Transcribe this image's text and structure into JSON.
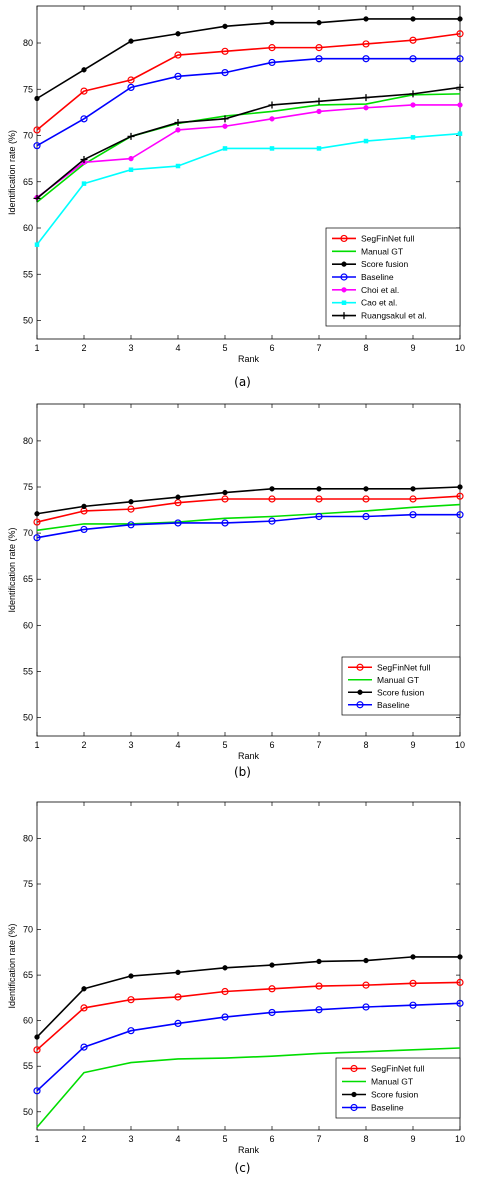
{
  "chart_data": [
    {
      "type": "line",
      "caption": "(a)",
      "xlabel": "Rank",
      "ylabel": "Identification rate (%)",
      "xlim": [
        1,
        10
      ],
      "ylim": [
        48,
        84
      ],
      "xticks": [
        1,
        2,
        3,
        4,
        5,
        6,
        7,
        8,
        9,
        10
      ],
      "yticks": [
        50,
        55,
        60,
        65,
        70,
        75,
        80
      ],
      "grid": false,
      "legend_position": "lower-right",
      "x": [
        1,
        2,
        3,
        4,
        5,
        6,
        7,
        8,
        9,
        10
      ],
      "series": [
        {
          "name": "SegFinNet full",
          "color": "#ff0000",
          "marker": "circle",
          "values": [
            70.6,
            74.8,
            76.0,
            78.7,
            79.1,
            79.5,
            79.5,
            79.9,
            80.3,
            81.0
          ]
        },
        {
          "name": "Manual GT",
          "color": "#00dd00",
          "marker": "none",
          "values": [
            62.8,
            66.9,
            69.9,
            71.3,
            72.1,
            72.6,
            73.3,
            73.4,
            74.4,
            74.5
          ]
        },
        {
          "name": "Score fusion",
          "color": "#000000",
          "marker": "dot",
          "values": [
            74.0,
            77.1,
            80.2,
            81.0,
            81.8,
            82.2,
            82.2,
            82.6,
            82.6,
            82.6
          ]
        },
        {
          "name": "Baseline",
          "color": "#0000ff",
          "marker": "circle",
          "values": [
            68.9,
            71.8,
            75.2,
            76.4,
            76.8,
            77.9,
            78.3,
            78.3,
            78.3,
            78.3
          ]
        },
        {
          "name": "Choi et al.",
          "color": "#ff00ff",
          "marker": "dot",
          "values": [
            63.3,
            67.1,
            67.5,
            70.6,
            71.0,
            71.8,
            72.6,
            73.0,
            73.3,
            73.3
          ]
        },
        {
          "name": "Cao et al.",
          "color": "#00ffff",
          "marker": "square",
          "values": [
            58.2,
            64.8,
            66.3,
            66.7,
            68.6,
            68.6,
            68.6,
            69.4,
            69.8,
            70.2
          ]
        },
        {
          "name": "Ruangsakul et al.",
          "color": "#000000",
          "marker": "plus",
          "values": [
            63.2,
            67.4,
            69.9,
            71.4,
            71.8,
            73.3,
            73.7,
            74.1,
            74.5,
            75.2
          ]
        }
      ]
    },
    {
      "type": "line",
      "caption": "(b)",
      "xlabel": "Rank",
      "ylabel": "Identification rate (%)",
      "xlim": [
        1,
        10
      ],
      "ylim": [
        48,
        84
      ],
      "xticks": [
        1,
        2,
        3,
        4,
        5,
        6,
        7,
        8,
        9,
        10
      ],
      "yticks": [
        50,
        55,
        60,
        65,
        70,
        75,
        80
      ],
      "grid": false,
      "legend_position": "lower-right",
      "x": [
        1,
        2,
        3,
        4,
        5,
        6,
        7,
        8,
        9,
        10
      ],
      "series": [
        {
          "name": "SegFinNet full",
          "color": "#ff0000",
          "marker": "circle",
          "values": [
            71.2,
            72.4,
            72.6,
            73.3,
            73.7,
            73.7,
            73.7,
            73.7,
            73.7,
            74.0
          ]
        },
        {
          "name": "Manual GT",
          "color": "#00dd00",
          "marker": "none",
          "values": [
            70.3,
            71.0,
            71.0,
            71.2,
            71.6,
            71.8,
            72.1,
            72.4,
            72.8,
            73.1
          ]
        },
        {
          "name": "Score fusion",
          "color": "#000000",
          "marker": "dot",
          "values": [
            72.1,
            72.9,
            73.4,
            73.9,
            74.4,
            74.8,
            74.8,
            74.8,
            74.8,
            75.0
          ]
        },
        {
          "name": "Baseline",
          "color": "#0000ff",
          "marker": "circle",
          "values": [
            69.5,
            70.4,
            70.9,
            71.1,
            71.1,
            71.3,
            71.8,
            71.8,
            72.0,
            72.0
          ]
        }
      ]
    },
    {
      "type": "line",
      "caption": "(c)",
      "xlabel": "Rank",
      "ylabel": "Identification rate (%)",
      "xlim": [
        1,
        10
      ],
      "ylim": [
        48,
        84
      ],
      "xticks": [
        1,
        2,
        3,
        4,
        5,
        6,
        7,
        8,
        9,
        10
      ],
      "yticks": [
        50,
        55,
        60,
        65,
        70,
        75,
        80
      ],
      "grid": false,
      "legend_position": "lower-right",
      "x": [
        1,
        2,
        3,
        4,
        5,
        6,
        7,
        8,
        9,
        10
      ],
      "series": [
        {
          "name": "SegFinNet full",
          "color": "#ff0000",
          "marker": "circle",
          "values": [
            56.8,
            61.4,
            62.3,
            62.6,
            63.2,
            63.5,
            63.8,
            63.9,
            64.1,
            64.2
          ]
        },
        {
          "name": "Manual GT",
          "color": "#00dd00",
          "marker": "none",
          "values": [
            48.3,
            54.3,
            55.4,
            55.8,
            55.9,
            56.1,
            56.4,
            56.6,
            56.8,
            57.0
          ]
        },
        {
          "name": "Score fusion",
          "color": "#000000",
          "marker": "dot",
          "values": [
            58.2,
            63.5,
            64.9,
            65.3,
            65.8,
            66.1,
            66.5,
            66.6,
            67.0,
            67.0
          ]
        },
        {
          "name": "Baseline",
          "color": "#0000ff",
          "marker": "circle",
          "values": [
            52.3,
            57.1,
            58.9,
            59.7,
            60.4,
            60.9,
            61.2,
            61.5,
            61.7,
            61.9
          ]
        }
      ]
    }
  ]
}
